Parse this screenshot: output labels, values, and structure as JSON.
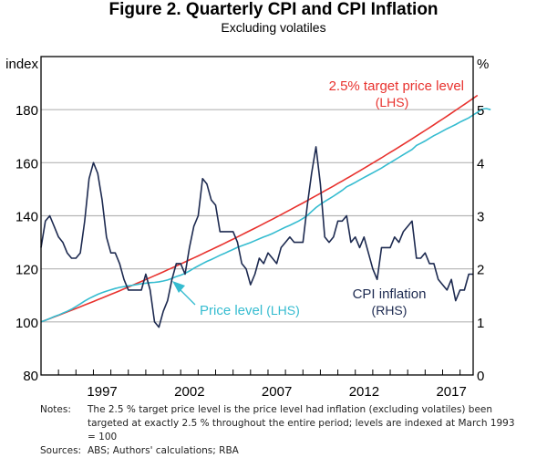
{
  "chart_data": {
    "type": "line",
    "title": "Figure 2. Quarterly CPI and CPI Inflation",
    "subtitle": "Excluding volatiles",
    "left_axis": {
      "label": "index",
      "range": [
        80,
        200
      ],
      "ticks": [
        80,
        100,
        120,
        140,
        160,
        180
      ]
    },
    "right_axis": {
      "label": "%",
      "range": [
        0,
        6
      ],
      "ticks": [
        0,
        1,
        2,
        3,
        4,
        5
      ]
    },
    "x_axis": {
      "range": [
        1993.0,
        2017.75
      ],
      "tick_labels": [
        "1997",
        "2002",
        "2007",
        "2012",
        "2017"
      ],
      "tick_label_years": [
        1997,
        2002,
        2007,
        2012,
        2017
      ]
    },
    "grid": true,
    "series": [
      {
        "name": "2.5% target price level",
        "axis": "LHS",
        "label": "2.5% target price level",
        "label_axis": "(LHS)",
        "color": "#e8322e",
        "start": 1993.0,
        "end_year": 2017.5,
        "start_value": 100,
        "annual_growth_pct": 2.5
      },
      {
        "name": "Price level",
        "axis": "LHS",
        "label": "Price level",
        "label_axis": "(LHS)",
        "color": "#35bcd0",
        "x_start": 1993.0,
        "step_years": 0.25,
        "values": [
          100,
          100.6,
          101.3,
          102,
          102.6,
          103.3,
          104,
          104.8,
          105.8,
          106.8,
          107.9,
          108.8,
          109.6,
          110.4,
          111,
          111.6,
          112.1,
          112.6,
          113,
          113.3,
          113.6,
          113.8,
          114.1,
          114.4,
          114.6,
          114.8,
          114.9,
          115.1,
          115.4,
          115.8,
          116.4,
          117.1,
          117.6,
          118.3,
          119.2,
          120.2,
          121.1,
          122,
          122.8,
          123.5,
          124.3,
          125.1,
          125.8,
          126.6,
          127.3,
          128.1,
          128.7,
          129.3,
          129.9,
          130.6,
          131.3,
          132,
          132.6,
          133.3,
          134.1,
          134.9,
          135.7,
          136.4,
          137.2,
          138,
          139,
          140.1,
          141.6,
          143.1,
          144.3,
          145.4,
          146.4,
          147.4,
          148.5,
          149.6,
          150.9,
          151.7,
          152.6,
          153.5,
          154.4,
          155.3,
          156.2,
          157.1,
          158,
          159,
          160,
          161,
          162,
          163,
          164,
          165,
          166.5,
          167.3,
          168.2,
          169.2,
          170.2,
          171,
          171.9,
          172.8,
          173.6,
          174.4,
          175.3,
          176.1,
          176.9,
          178,
          179,
          180.2,
          180.4,
          180
        ]
      },
      {
        "name": "CPI inflation",
        "axis": "RHS",
        "label": "CPI inflation",
        "label_axis": "(RHS)",
        "color": "#1d2a50",
        "x_start": 1993.0,
        "step_years": 0.25,
        "values": [
          2.4,
          2.9,
          3.0,
          2.8,
          2.6,
          2.5,
          2.3,
          2.2,
          2.2,
          2.3,
          2.9,
          3.7,
          4.0,
          3.8,
          3.3,
          2.6,
          2.3,
          2.3,
          2.1,
          1.8,
          1.6,
          1.6,
          1.6,
          1.6,
          1.9,
          1.6,
          1.0,
          0.9,
          1.2,
          1.4,
          1.8,
          2.1,
          2.1,
          1.9,
          2.4,
          2.8,
          3.0,
          3.7,
          3.6,
          3.3,
          3.2,
          2.7,
          2.7,
          2.7,
          2.7,
          2.5,
          2.1,
          2.0,
          1.7,
          1.9,
          2.2,
          2.1,
          2.3,
          2.2,
          2.1,
          2.4,
          2.5,
          2.6,
          2.5,
          2.5,
          2.5,
          3.2,
          3.8,
          4.3,
          3.6,
          2.6,
          2.5,
          2.6,
          2.9,
          2.9,
          3.0,
          2.5,
          2.6,
          2.4,
          2.6,
          2.3,
          2.0,
          1.8,
          2.4,
          2.4,
          2.4,
          2.6,
          2.5,
          2.7,
          2.8,
          2.9,
          2.2,
          2.2,
          2.3,
          2.1,
          2.1,
          1.8,
          1.7,
          1.6,
          1.8,
          1.4,
          1.6,
          1.6,
          1.9,
          1.9
        ]
      }
    ],
    "annotations": [
      {
        "text": "2.5% target price level",
        "sub": "(LHS)",
        "series": "2.5% target price level"
      },
      {
        "text": "Price level",
        "sub": "(LHS)",
        "series": "Price level",
        "arrow": true
      },
      {
        "text": "CPI inflation",
        "sub": "(RHS)",
        "series": "CPI inflation"
      }
    ]
  },
  "notes_label": "Notes:",
  "notes_text": "The 2.5 % target price level is the price level had inflation (excluding volatiles) been targeted at exactly 2.5 % throughout the entire period; levels are indexed at March 1993 = 100",
  "sources_label": "Sources:",
  "sources_text": "ABS; Authors' calculations; RBA"
}
